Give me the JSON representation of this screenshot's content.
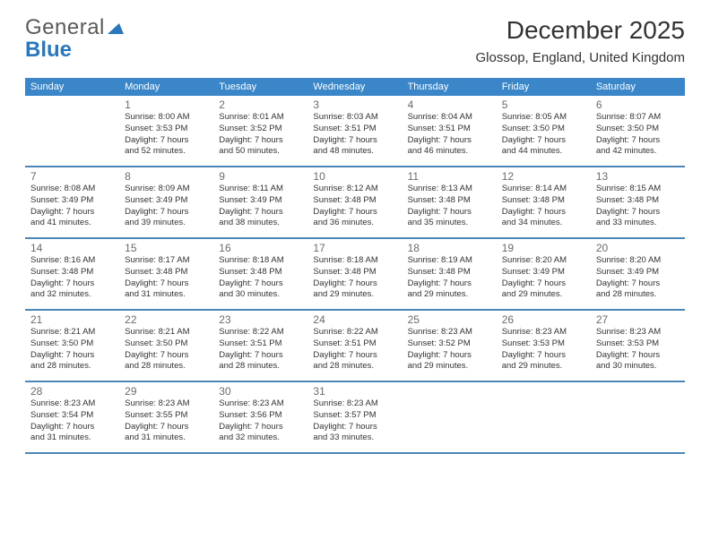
{
  "logo": {
    "text1": "General",
    "text2": "Blue",
    "color_general": "#5a5a5a",
    "color_blue": "#2a77bb",
    "triangle_color": "#2a77bb"
  },
  "header": {
    "month_title": "December 2025",
    "location": "Glossop, England, United Kingdom"
  },
  "colors": {
    "header_bg": "#3a86c8",
    "header_text": "#ffffff",
    "row_divider": "#4a86b8",
    "daynum": "#6b6b6b",
    "body_text": "#333333",
    "page_bg": "#ffffff"
  },
  "calendar": {
    "days_of_week": [
      "Sunday",
      "Monday",
      "Tuesday",
      "Wednesday",
      "Thursday",
      "Friday",
      "Saturday"
    ],
    "weeks": [
      [
        {
          "num": "",
          "sunrise": "",
          "sunset": "",
          "daylight1": "",
          "daylight2": ""
        },
        {
          "num": "1",
          "sunrise": "Sunrise: 8:00 AM",
          "sunset": "Sunset: 3:53 PM",
          "daylight1": "Daylight: 7 hours",
          "daylight2": "and 52 minutes."
        },
        {
          "num": "2",
          "sunrise": "Sunrise: 8:01 AM",
          "sunset": "Sunset: 3:52 PM",
          "daylight1": "Daylight: 7 hours",
          "daylight2": "and 50 minutes."
        },
        {
          "num": "3",
          "sunrise": "Sunrise: 8:03 AM",
          "sunset": "Sunset: 3:51 PM",
          "daylight1": "Daylight: 7 hours",
          "daylight2": "and 48 minutes."
        },
        {
          "num": "4",
          "sunrise": "Sunrise: 8:04 AM",
          "sunset": "Sunset: 3:51 PM",
          "daylight1": "Daylight: 7 hours",
          "daylight2": "and 46 minutes."
        },
        {
          "num": "5",
          "sunrise": "Sunrise: 8:05 AM",
          "sunset": "Sunset: 3:50 PM",
          "daylight1": "Daylight: 7 hours",
          "daylight2": "and 44 minutes."
        },
        {
          "num": "6",
          "sunrise": "Sunrise: 8:07 AM",
          "sunset": "Sunset: 3:50 PM",
          "daylight1": "Daylight: 7 hours",
          "daylight2": "and 42 minutes."
        }
      ],
      [
        {
          "num": "7",
          "sunrise": "Sunrise: 8:08 AM",
          "sunset": "Sunset: 3:49 PM",
          "daylight1": "Daylight: 7 hours",
          "daylight2": "and 41 minutes."
        },
        {
          "num": "8",
          "sunrise": "Sunrise: 8:09 AM",
          "sunset": "Sunset: 3:49 PM",
          "daylight1": "Daylight: 7 hours",
          "daylight2": "and 39 minutes."
        },
        {
          "num": "9",
          "sunrise": "Sunrise: 8:11 AM",
          "sunset": "Sunset: 3:49 PM",
          "daylight1": "Daylight: 7 hours",
          "daylight2": "and 38 minutes."
        },
        {
          "num": "10",
          "sunrise": "Sunrise: 8:12 AM",
          "sunset": "Sunset: 3:48 PM",
          "daylight1": "Daylight: 7 hours",
          "daylight2": "and 36 minutes."
        },
        {
          "num": "11",
          "sunrise": "Sunrise: 8:13 AM",
          "sunset": "Sunset: 3:48 PM",
          "daylight1": "Daylight: 7 hours",
          "daylight2": "and 35 minutes."
        },
        {
          "num": "12",
          "sunrise": "Sunrise: 8:14 AM",
          "sunset": "Sunset: 3:48 PM",
          "daylight1": "Daylight: 7 hours",
          "daylight2": "and 34 minutes."
        },
        {
          "num": "13",
          "sunrise": "Sunrise: 8:15 AM",
          "sunset": "Sunset: 3:48 PM",
          "daylight1": "Daylight: 7 hours",
          "daylight2": "and 33 minutes."
        }
      ],
      [
        {
          "num": "14",
          "sunrise": "Sunrise: 8:16 AM",
          "sunset": "Sunset: 3:48 PM",
          "daylight1": "Daylight: 7 hours",
          "daylight2": "and 32 minutes."
        },
        {
          "num": "15",
          "sunrise": "Sunrise: 8:17 AM",
          "sunset": "Sunset: 3:48 PM",
          "daylight1": "Daylight: 7 hours",
          "daylight2": "and 31 minutes."
        },
        {
          "num": "16",
          "sunrise": "Sunrise: 8:18 AM",
          "sunset": "Sunset: 3:48 PM",
          "daylight1": "Daylight: 7 hours",
          "daylight2": "and 30 minutes."
        },
        {
          "num": "17",
          "sunrise": "Sunrise: 8:18 AM",
          "sunset": "Sunset: 3:48 PM",
          "daylight1": "Daylight: 7 hours",
          "daylight2": "and 29 minutes."
        },
        {
          "num": "18",
          "sunrise": "Sunrise: 8:19 AM",
          "sunset": "Sunset: 3:48 PM",
          "daylight1": "Daylight: 7 hours",
          "daylight2": "and 29 minutes."
        },
        {
          "num": "19",
          "sunrise": "Sunrise: 8:20 AM",
          "sunset": "Sunset: 3:49 PM",
          "daylight1": "Daylight: 7 hours",
          "daylight2": "and 29 minutes."
        },
        {
          "num": "20",
          "sunrise": "Sunrise: 8:20 AM",
          "sunset": "Sunset: 3:49 PM",
          "daylight1": "Daylight: 7 hours",
          "daylight2": "and 28 minutes."
        }
      ],
      [
        {
          "num": "21",
          "sunrise": "Sunrise: 8:21 AM",
          "sunset": "Sunset: 3:50 PM",
          "daylight1": "Daylight: 7 hours",
          "daylight2": "and 28 minutes."
        },
        {
          "num": "22",
          "sunrise": "Sunrise: 8:21 AM",
          "sunset": "Sunset: 3:50 PM",
          "daylight1": "Daylight: 7 hours",
          "daylight2": "and 28 minutes."
        },
        {
          "num": "23",
          "sunrise": "Sunrise: 8:22 AM",
          "sunset": "Sunset: 3:51 PM",
          "daylight1": "Daylight: 7 hours",
          "daylight2": "and 28 minutes."
        },
        {
          "num": "24",
          "sunrise": "Sunrise: 8:22 AM",
          "sunset": "Sunset: 3:51 PM",
          "daylight1": "Daylight: 7 hours",
          "daylight2": "and 28 minutes."
        },
        {
          "num": "25",
          "sunrise": "Sunrise: 8:23 AM",
          "sunset": "Sunset: 3:52 PM",
          "daylight1": "Daylight: 7 hours",
          "daylight2": "and 29 minutes."
        },
        {
          "num": "26",
          "sunrise": "Sunrise: 8:23 AM",
          "sunset": "Sunset: 3:53 PM",
          "daylight1": "Daylight: 7 hours",
          "daylight2": "and 29 minutes."
        },
        {
          "num": "27",
          "sunrise": "Sunrise: 8:23 AM",
          "sunset": "Sunset: 3:53 PM",
          "daylight1": "Daylight: 7 hours",
          "daylight2": "and 30 minutes."
        }
      ],
      [
        {
          "num": "28",
          "sunrise": "Sunrise: 8:23 AM",
          "sunset": "Sunset: 3:54 PM",
          "daylight1": "Daylight: 7 hours",
          "daylight2": "and 31 minutes."
        },
        {
          "num": "29",
          "sunrise": "Sunrise: 8:23 AM",
          "sunset": "Sunset: 3:55 PM",
          "daylight1": "Daylight: 7 hours",
          "daylight2": "and 31 minutes."
        },
        {
          "num": "30",
          "sunrise": "Sunrise: 8:23 AM",
          "sunset": "Sunset: 3:56 PM",
          "daylight1": "Daylight: 7 hours",
          "daylight2": "and 32 minutes."
        },
        {
          "num": "31",
          "sunrise": "Sunrise: 8:23 AM",
          "sunset": "Sunset: 3:57 PM",
          "daylight1": "Daylight: 7 hours",
          "daylight2": "and 33 minutes."
        },
        {
          "num": "",
          "sunrise": "",
          "sunset": "",
          "daylight1": "",
          "daylight2": ""
        },
        {
          "num": "",
          "sunrise": "",
          "sunset": "",
          "daylight1": "",
          "daylight2": ""
        },
        {
          "num": "",
          "sunrise": "",
          "sunset": "",
          "daylight1": "",
          "daylight2": ""
        }
      ]
    ]
  }
}
